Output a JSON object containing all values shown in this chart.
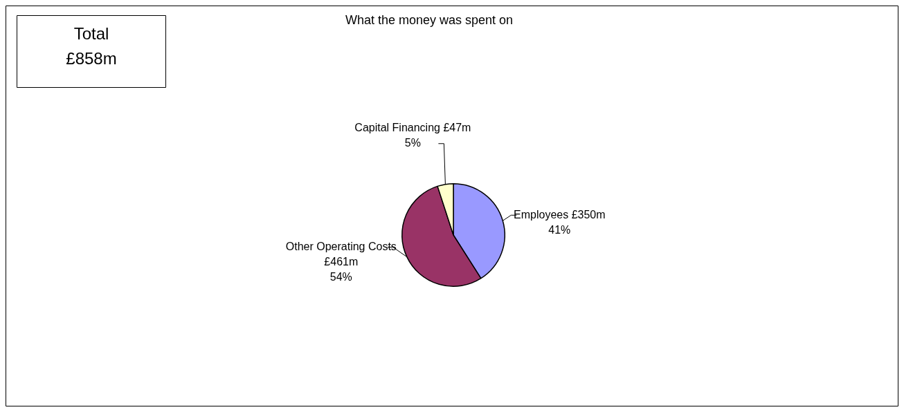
{
  "chart_data": {
    "type": "pie",
    "title": "What the money was spent on",
    "categories": [
      "Employees £350m",
      "Other Operating Costs £461m",
      "Capital Financing £47m"
    ],
    "values": [
      41,
      54,
      5
    ],
    "colors": [
      "#9999ff",
      "#993366",
      "#ffffcc"
    ],
    "value_labels": [
      "41%",
      "54%",
      "5%"
    ],
    "annotations": [
      "Total £858m"
    ],
    "legend": false
  }
}
